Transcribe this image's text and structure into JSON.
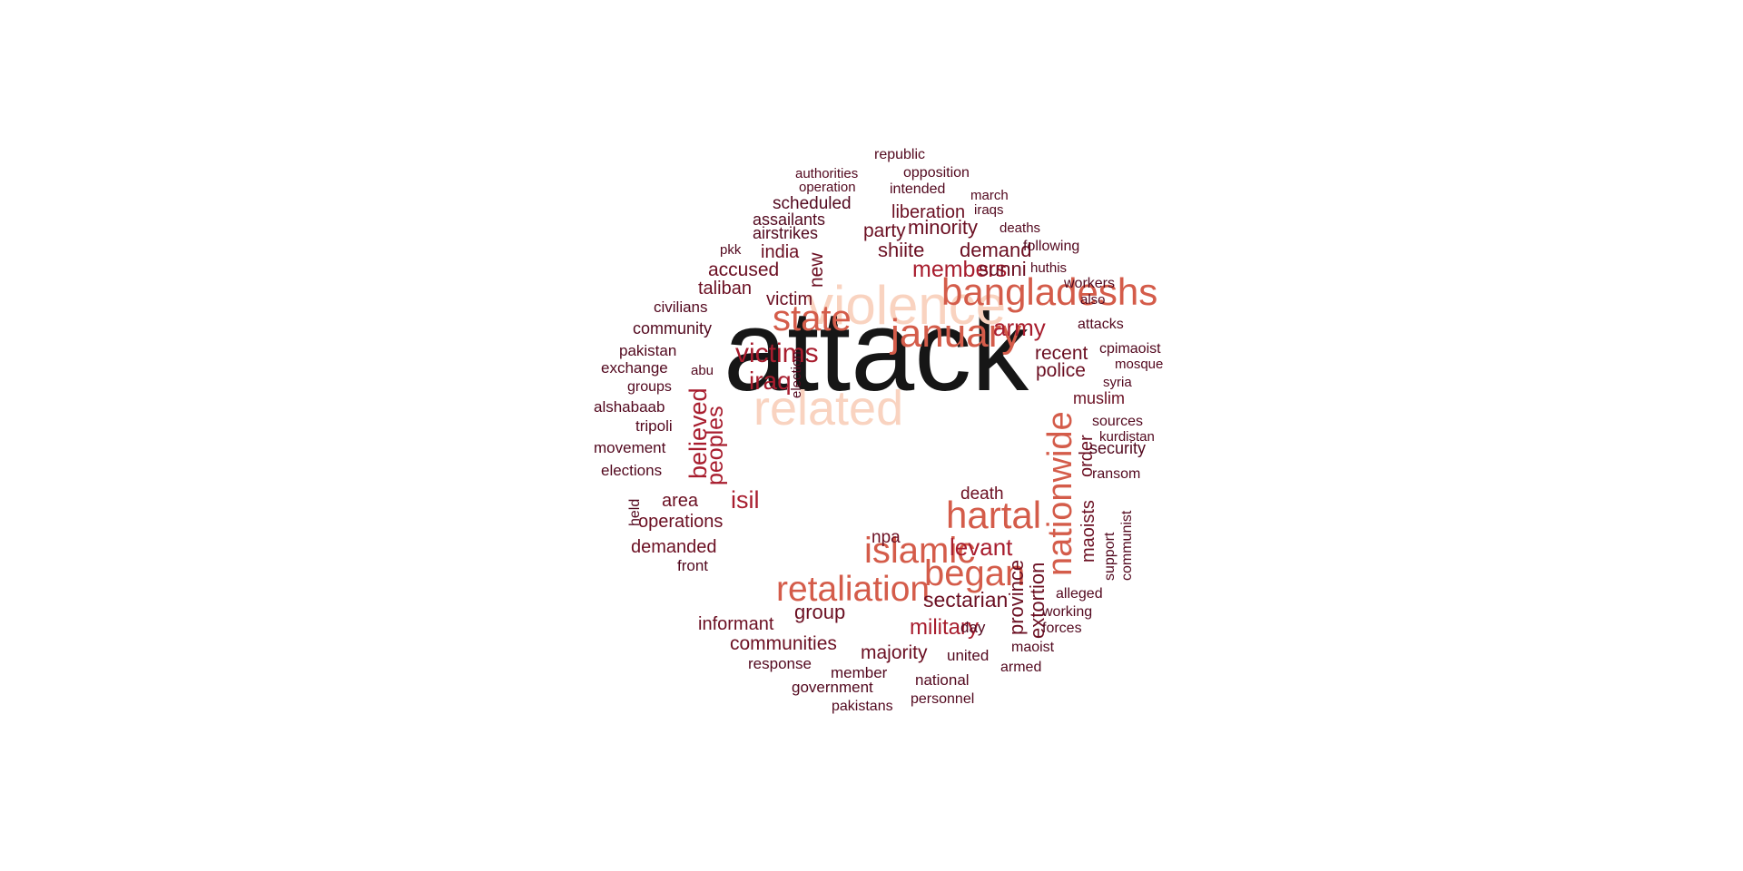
{
  "colors": {
    "black": "#161616",
    "peach": "#f9d3c0",
    "coral": "#d45c4a",
    "crimson": "#a81d2e",
    "maroon": "#6b0f22",
    "dark": "#52081e"
  },
  "words": [
    {
      "text": "attack",
      "color": "black"
    },
    {
      "text": "violence",
      "color": "peach"
    },
    {
      "text": "related",
      "color": "peach"
    },
    {
      "text": "bangladeshs",
      "color": "coral"
    },
    {
      "text": "january",
      "color": "coral"
    },
    {
      "text": "state",
      "color": "coral"
    },
    {
      "text": "hartal",
      "color": "coral"
    },
    {
      "text": "islamic",
      "color": "coral"
    },
    {
      "text": "began",
      "color": "coral"
    },
    {
      "text": "retaliation",
      "color": "coral"
    },
    {
      "text": "nationwide",
      "color": "coral"
    },
    {
      "text": "victims",
      "color": "crimson"
    },
    {
      "text": "iraq",
      "color": "crimson"
    },
    {
      "text": "army",
      "color": "crimson"
    },
    {
      "text": "levant",
      "color": "crimson"
    },
    {
      "text": "isil",
      "color": "crimson"
    },
    {
      "text": "members",
      "color": "crimson"
    },
    {
      "text": "believed",
      "color": "crimson"
    },
    {
      "text": "peoples",
      "color": "crimson"
    },
    {
      "text": "military",
      "color": "crimson"
    },
    {
      "text": "group",
      "color": "maroon"
    },
    {
      "text": "demand",
      "color": "maroon"
    },
    {
      "text": "shiite",
      "color": "maroon"
    },
    {
      "text": "sunni",
      "color": "maroon"
    },
    {
      "text": "minority",
      "color": "maroon"
    },
    {
      "text": "party",
      "color": "maroon"
    },
    {
      "text": "liberation",
      "color": "maroon"
    },
    {
      "text": "accused",
      "color": "maroon"
    },
    {
      "text": "taliban",
      "color": "maroon"
    },
    {
      "text": "victim",
      "color": "maroon"
    },
    {
      "text": "new",
      "color": "maroon"
    },
    {
      "text": "india",
      "color": "maroon"
    },
    {
      "text": "recent",
      "color": "maroon"
    },
    {
      "text": "police",
      "color": "maroon"
    },
    {
      "text": "muslim",
      "color": "maroon"
    },
    {
      "text": "sectarian",
      "color": "maroon"
    },
    {
      "text": "majority",
      "color": "maroon"
    },
    {
      "text": "communities",
      "color": "maroon"
    },
    {
      "text": "operations",
      "color": "maroon"
    },
    {
      "text": "demanded",
      "color": "maroon"
    },
    {
      "text": "informant",
      "color": "maroon"
    },
    {
      "text": "province",
      "color": "maroon"
    },
    {
      "text": "extortion",
      "color": "maroon"
    },
    {
      "text": "maoists",
      "color": "maroon"
    },
    {
      "text": "order",
      "color": "maroon"
    },
    {
      "text": "death",
      "color": "maroon"
    },
    {
      "text": "npa",
      "color": "maroon"
    },
    {
      "text": "area",
      "color": "maroon"
    },
    {
      "text": "security",
      "color": "dark"
    },
    {
      "text": "scheduled",
      "color": "dark"
    },
    {
      "text": "assailants",
      "color": "dark"
    },
    {
      "text": "airstrikes",
      "color": "dark"
    },
    {
      "text": "community",
      "color": "dark"
    },
    {
      "text": "civilians",
      "color": "dark"
    },
    {
      "text": "pakistan",
      "color": "dark"
    },
    {
      "text": "exchange",
      "color": "dark"
    },
    {
      "text": "groups",
      "color": "dark"
    },
    {
      "text": "alshabaab",
      "color": "dark"
    },
    {
      "text": "tripoli",
      "color": "dark"
    },
    {
      "text": "movement",
      "color": "dark"
    },
    {
      "text": "elections",
      "color": "dark"
    },
    {
      "text": "held",
      "color": "dark"
    },
    {
      "text": "front",
      "color": "dark"
    },
    {
      "text": "response",
      "color": "dark"
    },
    {
      "text": "member",
      "color": "dark"
    },
    {
      "text": "government",
      "color": "dark"
    },
    {
      "text": "pakistans",
      "color": "dark"
    },
    {
      "text": "personnel",
      "color": "dark"
    },
    {
      "text": "national",
      "color": "dark"
    },
    {
      "text": "united",
      "color": "dark"
    },
    {
      "text": "day",
      "color": "dark"
    },
    {
      "text": "armed",
      "color": "dark"
    },
    {
      "text": "maoist",
      "color": "dark"
    },
    {
      "text": "forces",
      "color": "dark"
    },
    {
      "text": "working",
      "color": "dark"
    },
    {
      "text": "alleged",
      "color": "dark"
    },
    {
      "text": "support",
      "color": "dark"
    },
    {
      "text": "communist",
      "color": "dark"
    },
    {
      "text": "ransom",
      "color": "dark"
    },
    {
      "text": "kurdistan",
      "color": "dark"
    },
    {
      "text": "sources",
      "color": "dark"
    },
    {
      "text": "syria",
      "color": "dark"
    },
    {
      "text": "mosque",
      "color": "dark"
    },
    {
      "text": "cpimaoist",
      "color": "dark"
    },
    {
      "text": "attacks",
      "color": "dark"
    },
    {
      "text": "also",
      "color": "dark"
    },
    {
      "text": "workers",
      "color": "dark"
    },
    {
      "text": "huthis",
      "color": "dark"
    },
    {
      "text": "following",
      "color": "dark"
    },
    {
      "text": "deaths",
      "color": "dark"
    },
    {
      "text": "iraqs",
      "color": "dark"
    },
    {
      "text": "march",
      "color": "dark"
    },
    {
      "text": "intended",
      "color": "dark"
    },
    {
      "text": "opposition",
      "color": "dark"
    },
    {
      "text": "republic",
      "color": "dark"
    },
    {
      "text": "authorities",
      "color": "dark"
    },
    {
      "text": "operation",
      "color": "dark"
    },
    {
      "text": "pkk",
      "color": "dark"
    },
    {
      "text": "abu",
      "color": "dark"
    },
    {
      "text": "election",
      "color": "dark"
    }
  ]
}
